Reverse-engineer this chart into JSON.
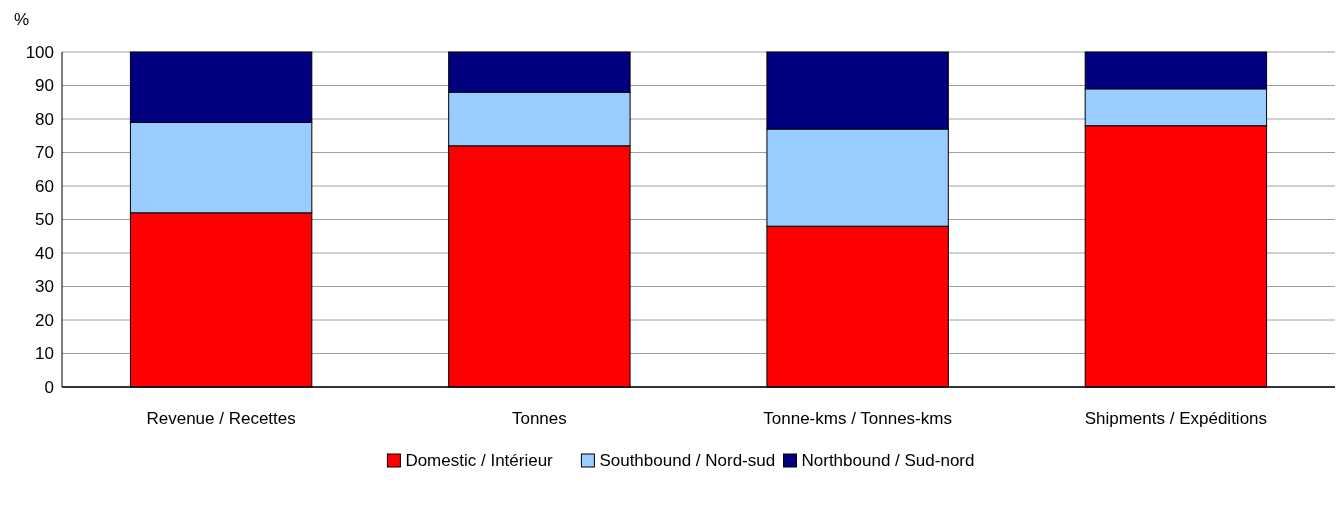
{
  "chart_data": {
    "type": "bar",
    "stacked": true,
    "ylabel": "%",
    "categories": [
      "Revenue / Recettes",
      "Tonnes",
      "Tonne-kms / Tonnes-kms",
      "Shipments / Expéditions"
    ],
    "series": [
      {
        "name": "Domestic / Intérieur",
        "color": "#ff0000",
        "values": [
          52,
          72,
          48,
          78
        ]
      },
      {
        "name": "Southbound / Nord-sud",
        "color": "#99ccff",
        "values": [
          27,
          16,
          29,
          11
        ]
      },
      {
        "name": "Northbound / Sud-nord",
        "color": "#000080",
        "values": [
          21,
          12,
          23,
          11
        ]
      }
    ],
    "ylim": [
      0,
      100
    ],
    "yticks": [
      0,
      10,
      20,
      30,
      40,
      50,
      60,
      70,
      80,
      90,
      100
    ],
    "grid": "y",
    "legend": "bottom"
  }
}
